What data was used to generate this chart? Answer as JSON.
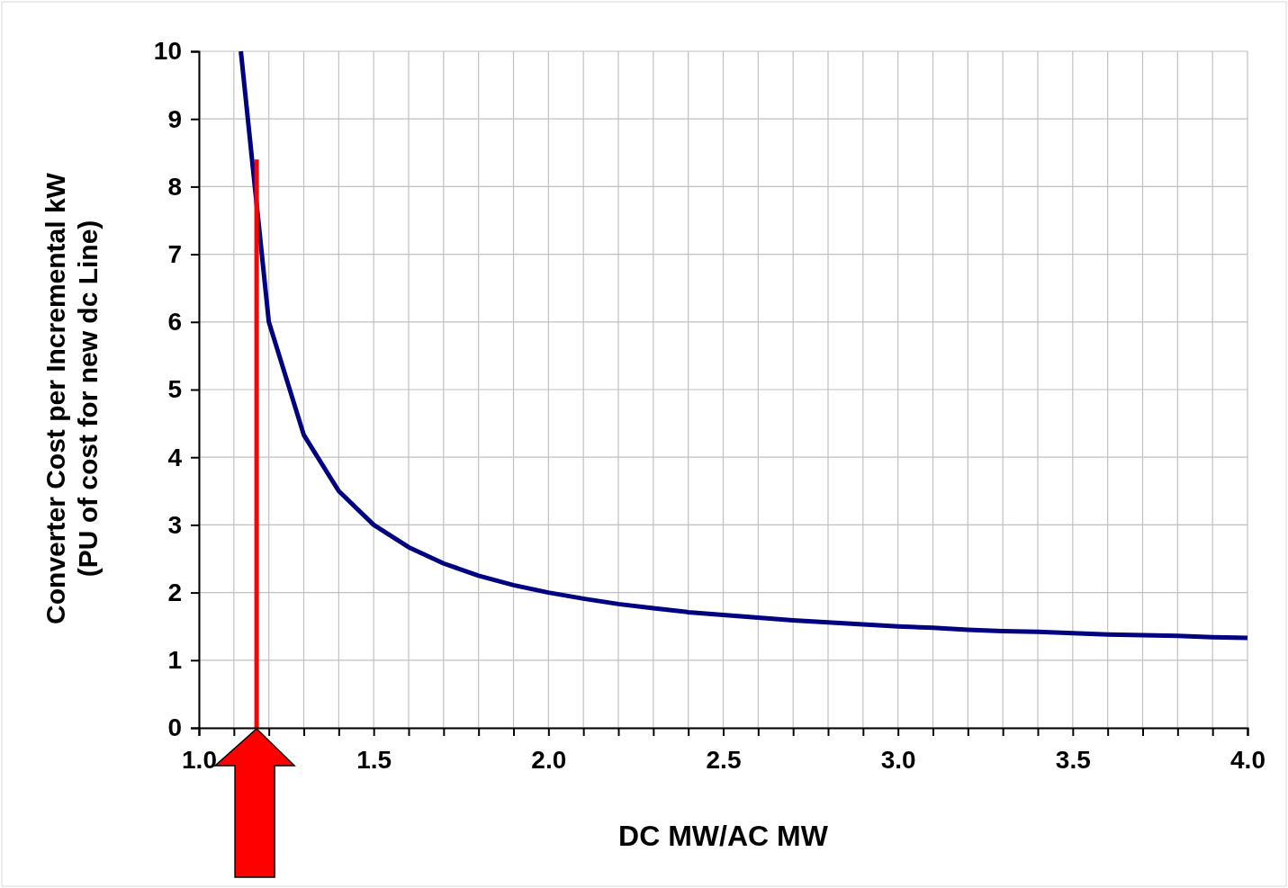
{
  "chart_data": {
    "type": "line",
    "xlabel": "DC MW/AC MW",
    "ylabel": "Converter Cost per Incremental kW\n(PU of cost for new dc Line)",
    "xlim": [
      1,
      4
    ],
    "ylim": [
      0,
      10
    ],
    "xticks": [
      {
        "value": 1,
        "label": "1.0"
      },
      {
        "value": 1.1,
        "label": null
      },
      {
        "value": 1.2,
        "label": null
      },
      {
        "value": 1.3,
        "label": null
      },
      {
        "value": 1.4,
        "label": null
      },
      {
        "value": 1.5,
        "label": "1.5"
      },
      {
        "value": 1.6,
        "label": null
      },
      {
        "value": 1.7,
        "label": null
      },
      {
        "value": 1.8,
        "label": null
      },
      {
        "value": 1.9,
        "label": null
      },
      {
        "value": 2,
        "label": "2.0"
      },
      {
        "value": 2.1,
        "label": null
      },
      {
        "value": 2.2,
        "label": null
      },
      {
        "value": 2.3,
        "label": null
      },
      {
        "value": 2.4,
        "label": null
      },
      {
        "value": 2.5,
        "label": "2.5"
      },
      {
        "value": 2.6,
        "label": null
      },
      {
        "value": 2.7,
        "label": null
      },
      {
        "value": 2.8,
        "label": null
      },
      {
        "value": 2.9,
        "label": null
      },
      {
        "value": 3,
        "label": "3.0"
      },
      {
        "value": 3.1,
        "label": null
      },
      {
        "value": 3.2,
        "label": null
      },
      {
        "value": 3.3,
        "label": null
      },
      {
        "value": 3.4,
        "label": null
      },
      {
        "value": 3.5,
        "label": "3.5"
      },
      {
        "value": 3.6,
        "label": null
      },
      {
        "value": 3.7,
        "label": null
      },
      {
        "value": 3.8,
        "label": null
      },
      {
        "value": 3.9,
        "label": null
      },
      {
        "value": 4,
        "label": "4.0"
      }
    ],
    "yticks": [
      0,
      1,
      2,
      3,
      4,
      5,
      6,
      7,
      8,
      9,
      10
    ],
    "grid": true,
    "series": [
      {
        "color": "#000080",
        "x": [
          1.12,
          1.2,
          1.3,
          1.4,
          1.5,
          1.6,
          1.7,
          1.8,
          1.9,
          2.0,
          2.1,
          2.2,
          2.3,
          2.4,
          2.5,
          2.6,
          2.7,
          2.8,
          2.9,
          3.0,
          3.1,
          3.2,
          3.3,
          3.4,
          3.5,
          3.6,
          3.7,
          3.8,
          3.9,
          4.0
        ],
        "values": [
          10,
          6.0,
          4.33,
          3.5,
          3.0,
          2.67,
          2.43,
          2.25,
          2.11,
          2.0,
          1.91,
          1.83,
          1.77,
          1.71,
          1.67,
          1.63,
          1.59,
          1.56,
          1.53,
          1.5,
          1.48,
          1.45,
          1.43,
          1.42,
          1.4,
          1.38,
          1.37,
          1.36,
          1.34,
          1.33
        ]
      },
      {
        "color": "#ff0000",
        "x": [
          1.165,
          1.165
        ],
        "values": [
          0,
          8.4
        ]
      }
    ]
  }
}
